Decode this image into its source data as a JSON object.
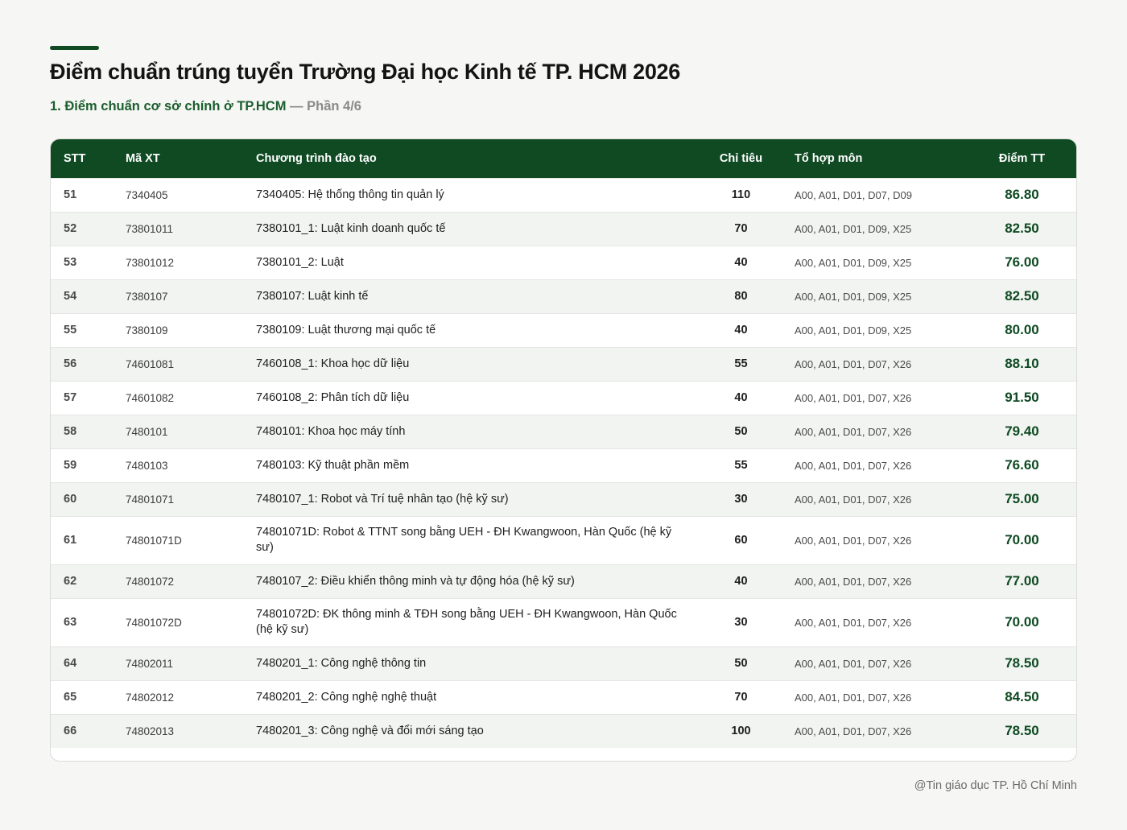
{
  "header": {
    "title": "Điểm chuẩn trúng tuyển Trường Đại học Kinh tế TP. HCM 2026",
    "subtitle_main": "1. Điểm chuẩn cơ sở chính ở TP.HCM",
    "subtitle_part": " — Phần 4/6"
  },
  "colors": {
    "accent": "#0f4a23",
    "score": "#0f4a23",
    "stripe": "#f1f4f1"
  },
  "table": {
    "columns": {
      "stt": "STT",
      "ma_xt": "Mã XT",
      "program": "Chương trình đào tạo",
      "chi_tieu": "Chỉ tiêu",
      "to_hop": "Tổ hợp môn",
      "diem": "Điểm TT"
    },
    "rows": [
      {
        "stt": "51",
        "ma": "7340405",
        "program": "7340405: Hệ thống thông tin quản lý",
        "chi_tieu": "110",
        "to_hop": "A00, A01, D01, D07, D09",
        "diem": "86.80"
      },
      {
        "stt": "52",
        "ma": "73801011",
        "program": "7380101_1: Luật kinh doanh quốc tế",
        "chi_tieu": "70",
        "to_hop": "A00, A01, D01, D09, X25",
        "diem": "82.50"
      },
      {
        "stt": "53",
        "ma": "73801012",
        "program": "7380101_2: Luật",
        "chi_tieu": "40",
        "to_hop": "A00, A01, D01, D09, X25",
        "diem": "76.00"
      },
      {
        "stt": "54",
        "ma": "7380107",
        "program": "7380107: Luật kinh tế",
        "chi_tieu": "80",
        "to_hop": "A00, A01, D01, D09, X25",
        "diem": "82.50"
      },
      {
        "stt": "55",
        "ma": "7380109",
        "program": "7380109: Luật thương mại quốc tế",
        "chi_tieu": "40",
        "to_hop": "A00, A01, D01, D09, X25",
        "diem": "80.00"
      },
      {
        "stt": "56",
        "ma": "74601081",
        "program": "7460108_1: Khoa học dữ liệu",
        "chi_tieu": "55",
        "to_hop": "A00, A01, D01, D07, X26",
        "diem": "88.10"
      },
      {
        "stt": "57",
        "ma": "74601082",
        "program": "7460108_2: Phân tích dữ liệu",
        "chi_tieu": "40",
        "to_hop": "A00, A01, D01, D07, X26",
        "diem": "91.50"
      },
      {
        "stt": "58",
        "ma": "7480101",
        "program": "7480101: Khoa học máy tính",
        "chi_tieu": "50",
        "to_hop": "A00, A01, D01, D07, X26",
        "diem": "79.40"
      },
      {
        "stt": "59",
        "ma": "7480103",
        "program": "7480103: Kỹ thuật phần mềm",
        "chi_tieu": "55",
        "to_hop": "A00, A01, D01, D07, X26",
        "diem": "76.60"
      },
      {
        "stt": "60",
        "ma": "74801071",
        "program": "7480107_1: Robot và Trí tuệ nhân tạo (hệ kỹ sư)",
        "chi_tieu": "30",
        "to_hop": "A00, A01, D01, D07, X26",
        "diem": "75.00"
      },
      {
        "stt": "61",
        "ma": "74801071D",
        "program": "74801071D: Robot & TTNT song bằng UEH - ĐH Kwangwoon, Hàn Quốc (hệ kỹ sư)",
        "chi_tieu": "60",
        "to_hop": "A00, A01, D01, D07, X26",
        "diem": "70.00"
      },
      {
        "stt": "62",
        "ma": "74801072",
        "program": "7480107_2: Điều khiển thông minh và tự động hóa (hệ kỹ sư)",
        "chi_tieu": "40",
        "to_hop": "A00, A01, D01, D07, X26",
        "diem": "77.00"
      },
      {
        "stt": "63",
        "ma": "74801072D",
        "program": "74801072D: ĐK thông minh & TĐH song bằng UEH - ĐH Kwangwoon, Hàn Quốc (hệ kỹ sư)",
        "chi_tieu": "30",
        "to_hop": "A00, A01, D01, D07, X26",
        "diem": "70.00"
      },
      {
        "stt": "64",
        "ma": "74802011",
        "program": "7480201_1: Công nghệ thông tin",
        "chi_tieu": "50",
        "to_hop": "A00, A01, D01, D07, X26",
        "diem": "78.50"
      },
      {
        "stt": "65",
        "ma": "74802012",
        "program": "7480201_2: Công nghệ nghệ thuật",
        "chi_tieu": "70",
        "to_hop": "A00, A01, D01, D07, X26",
        "diem": "84.50"
      },
      {
        "stt": "66",
        "ma": "74802013",
        "program": "7480201_3: Công nghệ và đổi mới sáng tạo",
        "chi_tieu": "100",
        "to_hop": "A00, A01, D01, D07, X26",
        "diem": "78.50"
      }
    ]
  },
  "footer": {
    "credit": "@Tin giáo dục TP. Hồ Chí Minh"
  }
}
